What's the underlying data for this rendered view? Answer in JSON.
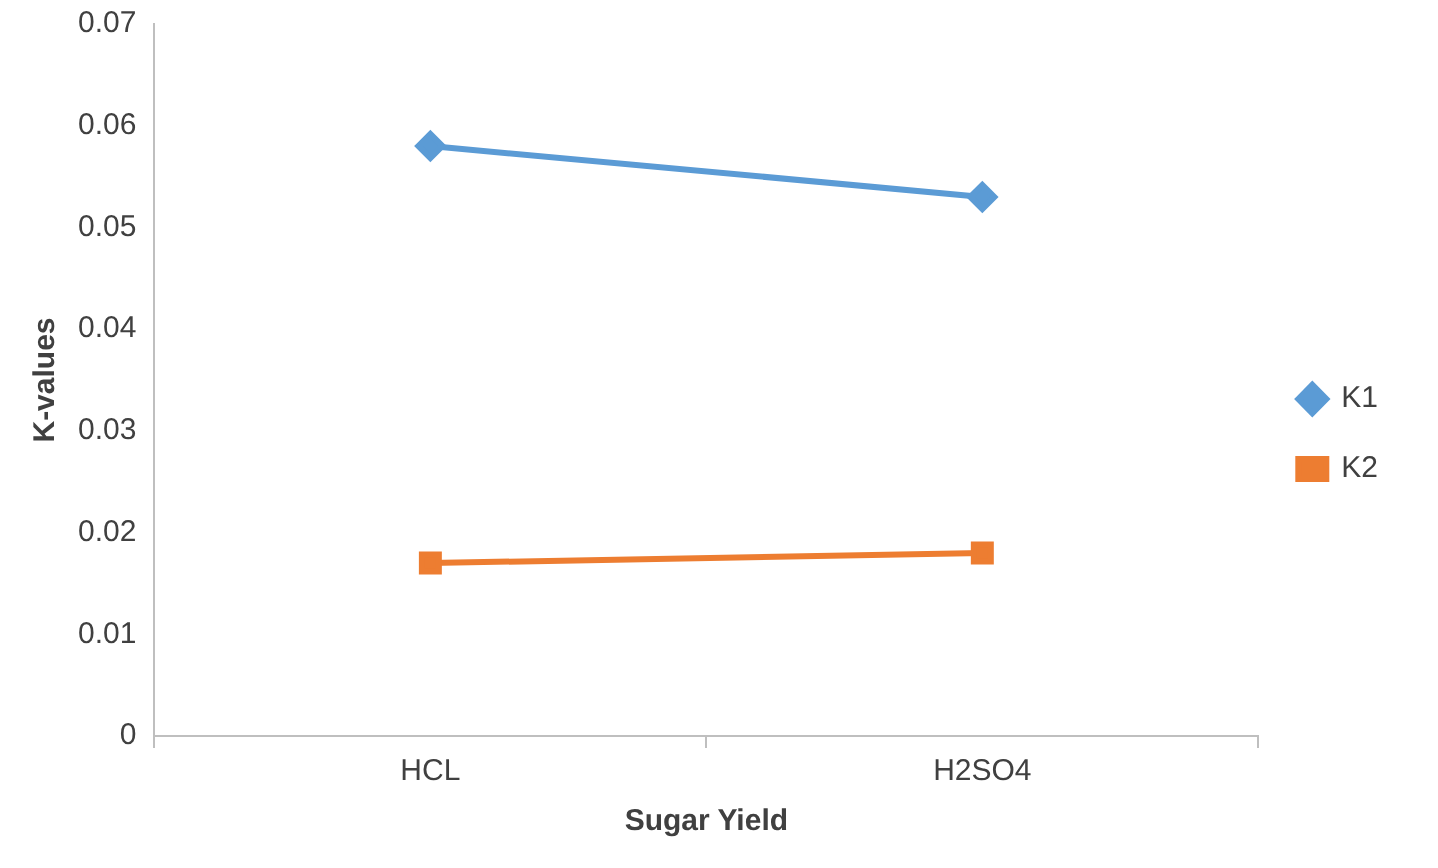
{
  "chart_data": {
    "type": "line",
    "xlabel": "Sugar Yield",
    "ylabel": "K-values",
    "categories": [
      "HCL",
      "H2SO4"
    ],
    "series": [
      {
        "name": "K1",
        "color": "#5b9bd5",
        "marker": "diamond",
        "values": [
          0.058,
          0.053
        ]
      },
      {
        "name": "K2",
        "color": "#ed7d31",
        "marker": "square",
        "values": [
          0.017,
          0.018
        ]
      }
    ],
    "ylim": [
      0,
      0.07
    ],
    "yticks": [
      0,
      0.01,
      0.02,
      0.03,
      0.04,
      0.05,
      0.06,
      0.07
    ],
    "grid": false,
    "legend": "right",
    "line_style": "solid"
  }
}
